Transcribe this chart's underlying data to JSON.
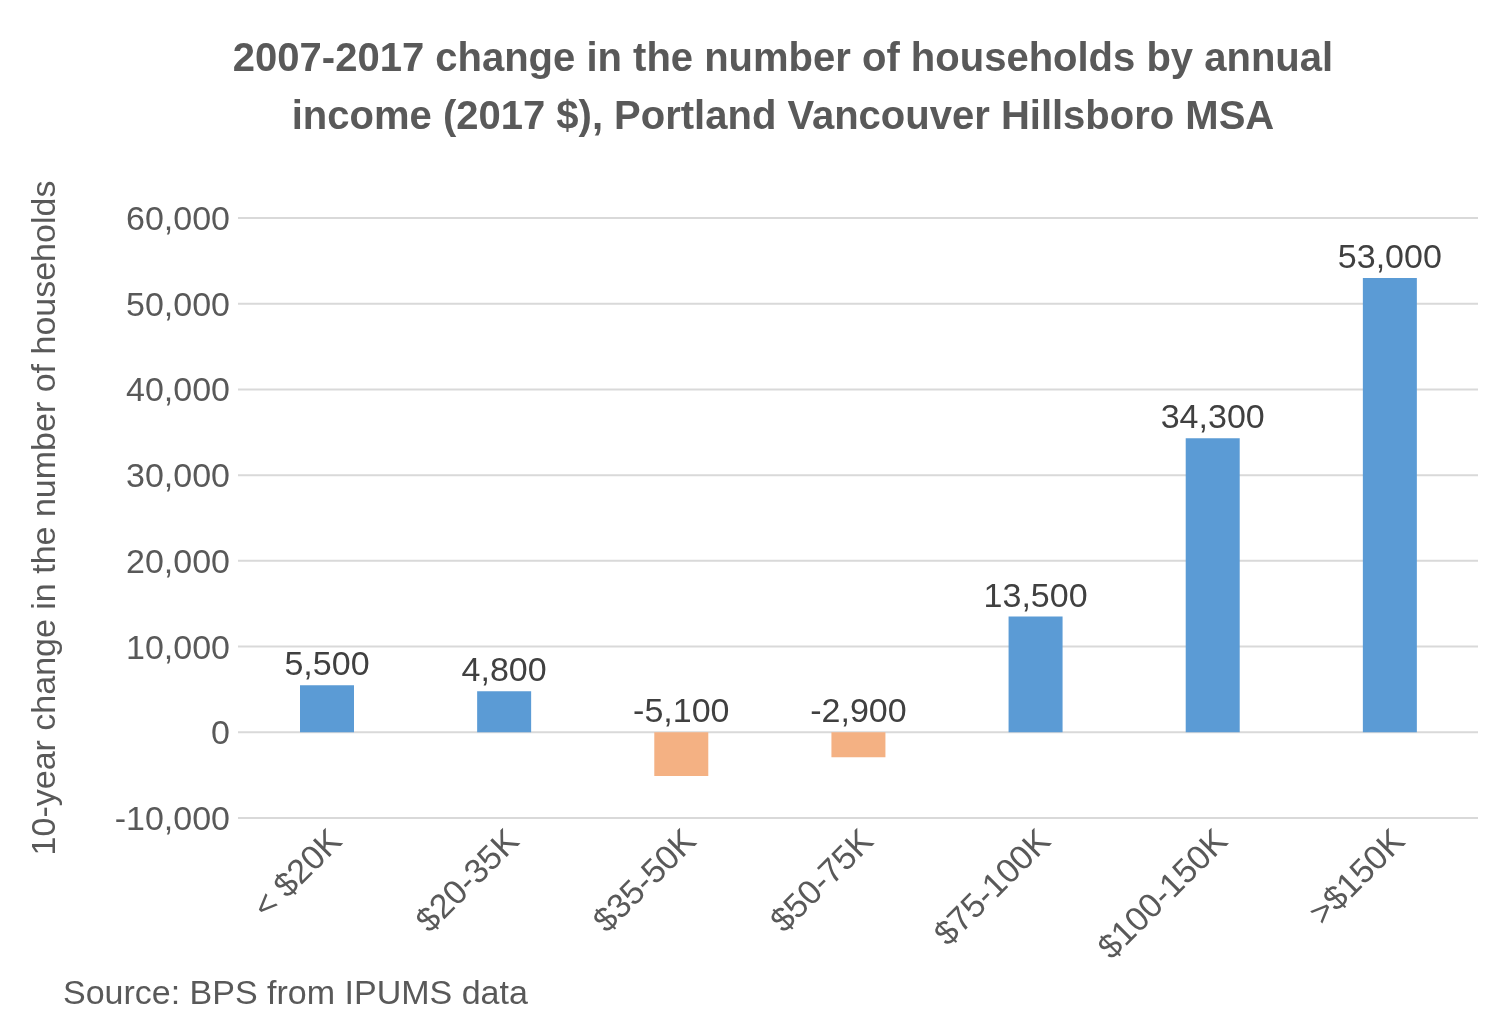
{
  "chart_data": {
    "type": "bar",
    "title": "2007-2017 change in the number of households by annual income (2017 $), Portland Vancouver Hillsboro MSA",
    "ylabel": "10-year change in the number of households",
    "categories": [
      "< $20K",
      "$20-35K",
      "$35-50K",
      "$50-75K",
      "$75-100K",
      "$100-150K",
      ">$150K"
    ],
    "values": [
      5500,
      4800,
      -5100,
      -2900,
      13500,
      34300,
      53000
    ],
    "colors": [
      "#5b9bd5",
      "#5b9bd5",
      "#f4b183",
      "#f4b183",
      "#5b9bd5",
      "#5b9bd5",
      "#5b9bd5"
    ],
    "value_labels": [
      "5,500",
      "4,800",
      "-5,100",
      "-2,900",
      "13,500",
      "34,300",
      "53,000"
    ],
    "ylim": [
      -10000,
      60000
    ],
    "yticks": [
      {
        "value": -10000,
        "label": "-10,000"
      },
      0,
      {
        "value": 10000,
        "label": "10,000"
      },
      {
        "value": 20000,
        "label": "20,000"
      },
      {
        "value": 30000,
        "label": "30,000"
      },
      {
        "value": 40000,
        "label": "40,000"
      },
      {
        "value": 50000,
        "label": "50,000"
      },
      {
        "value": 60000,
        "label": "60,000"
      }
    ],
    "grid": "y",
    "annotations": [
      "Source: BPS from IPUMS data"
    ]
  }
}
